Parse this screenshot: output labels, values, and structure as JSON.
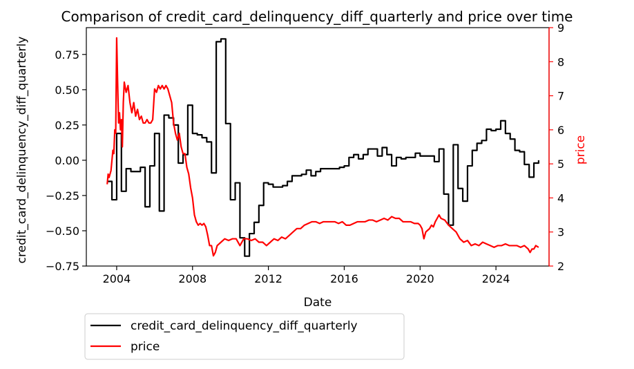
{
  "chart_data": {
    "type": "line",
    "title": "Comparison of credit_card_delinquency_diff_quarterly and price over time",
    "xlabel": "Date",
    "ylabel_left": "credit_card_delinquency_diff_quarterly",
    "ylabel_right": "price",
    "xlim": [
      2002.4,
      2026.8
    ],
    "ylim_left": [
      -0.75,
      0.94
    ],
    "ylim_right": [
      2.0,
      9.0
    ],
    "x_ticks": [
      2004,
      2008,
      2012,
      2016,
      2020,
      2024
    ],
    "x_tick_labels": [
      "2004",
      "2008",
      "2012",
      "2016",
      "2020",
      "2024"
    ],
    "y_left_ticks": [
      -0.75,
      -0.5,
      -0.25,
      0.0,
      0.25,
      0.5,
      0.75
    ],
    "y_left_tick_labels": [
      "−0.75",
      "−0.50",
      "−0.25",
      "0.00",
      "0.25",
      "0.50",
      "0.75"
    ],
    "y_right_ticks": [
      2,
      3,
      4,
      5,
      6,
      7,
      8,
      9
    ],
    "y_right_tick_labels": [
      "2",
      "3",
      "4",
      "5",
      "6",
      "7",
      "8",
      "9"
    ],
    "grid": false,
    "legend_placement": "below-left",
    "series": [
      {
        "name": "credit_card_delinquency_diff_quarterly",
        "axis": "left",
        "color": "#000000",
        "step": true,
        "points": [
          [
            2003.5,
            -0.15
          ],
          [
            2003.75,
            -0.28
          ],
          [
            2004.0,
            0.19
          ],
          [
            2004.25,
            -0.22
          ],
          [
            2004.5,
            -0.06
          ],
          [
            2004.75,
            -0.08
          ],
          [
            2005.0,
            -0.08
          ],
          [
            2005.25,
            -0.05
          ],
          [
            2005.5,
            -0.33
          ],
          [
            2005.75,
            -0.04
          ],
          [
            2006.0,
            0.19
          ],
          [
            2006.25,
            -0.36
          ],
          [
            2006.5,
            0.32
          ],
          [
            2006.75,
            0.3
          ],
          [
            2007.0,
            0.25
          ],
          [
            2007.25,
            -0.02
          ],
          [
            2007.5,
            0.04
          ],
          [
            2007.75,
            0.39
          ],
          [
            2008.0,
            0.19
          ],
          [
            2008.25,
            0.18
          ],
          [
            2008.5,
            0.16
          ],
          [
            2008.75,
            0.13
          ],
          [
            2009.0,
            -0.09
          ],
          [
            2009.25,
            0.84
          ],
          [
            2009.5,
            0.86
          ],
          [
            2009.75,
            0.26
          ],
          [
            2010.0,
            -0.28
          ],
          [
            2010.25,
            -0.16
          ],
          [
            2010.5,
            -0.55
          ],
          [
            2010.75,
            -0.68
          ],
          [
            2011.0,
            -0.52
          ],
          [
            2011.25,
            -0.44
          ],
          [
            2011.5,
            -0.32
          ],
          [
            2011.75,
            -0.16
          ],
          [
            2012.0,
            -0.17
          ],
          [
            2012.25,
            -0.19
          ],
          [
            2012.5,
            -0.19
          ],
          [
            2012.75,
            -0.18
          ],
          [
            2013.0,
            -0.15
          ],
          [
            2013.25,
            -0.11
          ],
          [
            2013.5,
            -0.11
          ],
          [
            2013.75,
            -0.1
          ],
          [
            2014.0,
            -0.07
          ],
          [
            2014.25,
            -0.11
          ],
          [
            2014.5,
            -0.08
          ],
          [
            2014.75,
            -0.06
          ],
          [
            2015.0,
            -0.06
          ],
          [
            2015.25,
            -0.06
          ],
          [
            2015.5,
            -0.06
          ],
          [
            2015.75,
            -0.05
          ],
          [
            2016.0,
            -0.04
          ],
          [
            2016.25,
            0.02
          ],
          [
            2016.5,
            0.04
          ],
          [
            2016.75,
            0.01
          ],
          [
            2017.0,
            0.04
          ],
          [
            2017.25,
            0.08
          ],
          [
            2017.5,
            0.08
          ],
          [
            2017.75,
            0.03
          ],
          [
            2018.0,
            0.09
          ],
          [
            2018.25,
            0.04
          ],
          [
            2018.5,
            -0.04
          ],
          [
            2018.75,
            0.02
          ],
          [
            2019.0,
            0.01
          ],
          [
            2019.25,
            0.02
          ],
          [
            2019.5,
            0.02
          ],
          [
            2019.75,
            0.05
          ],
          [
            2020.0,
            0.03
          ],
          [
            2020.25,
            0.03
          ],
          [
            2020.5,
            0.03
          ],
          [
            2020.75,
            -0.01
          ],
          [
            2021.0,
            0.08
          ],
          [
            2021.25,
            -0.24
          ],
          [
            2021.5,
            -0.46
          ],
          [
            2021.75,
            0.11
          ],
          [
            2022.0,
            -0.2
          ],
          [
            2022.25,
            -0.29
          ],
          [
            2022.5,
            -0.04
          ],
          [
            2022.75,
            0.07
          ],
          [
            2023.0,
            0.12
          ],
          [
            2023.25,
            0.14
          ],
          [
            2023.5,
            0.22
          ],
          [
            2023.75,
            0.21
          ],
          [
            2024.0,
            0.22
          ],
          [
            2024.25,
            0.28
          ],
          [
            2024.5,
            0.19
          ],
          [
            2024.75,
            0.15
          ],
          [
            2025.0,
            0.07
          ],
          [
            2025.25,
            0.06
          ],
          [
            2025.5,
            -0.03
          ],
          [
            2025.75,
            -0.12
          ],
          [
            2026.0,
            -0.02
          ],
          [
            2026.25,
            0.0
          ]
        ]
      },
      {
        "name": "price",
        "axis": "right",
        "color": "#ff0000",
        "step": false,
        "points": [
          [
            2003.5,
            4.4
          ],
          [
            2003.55,
            4.7
          ],
          [
            2003.6,
            4.6
          ],
          [
            2003.7,
            4.8
          ],
          [
            2003.8,
            5.4
          ],
          [
            2003.85,
            5.3
          ],
          [
            2003.9,
            6.0
          ],
          [
            2003.95,
            5.9
          ],
          [
            2004.0,
            8.7
          ],
          [
            2004.05,
            7.4
          ],
          [
            2004.1,
            6.2
          ],
          [
            2004.15,
            6.5
          ],
          [
            2004.2,
            6.0
          ],
          [
            2004.25,
            6.3
          ],
          [
            2004.3,
            5.5
          ],
          [
            2004.35,
            6.8
          ],
          [
            2004.4,
            7.4
          ],
          [
            2004.5,
            7.1
          ],
          [
            2004.6,
            7.3
          ],
          [
            2004.7,
            6.8
          ],
          [
            2004.8,
            6.5
          ],
          [
            2004.9,
            6.8
          ],
          [
            2005.0,
            6.4
          ],
          [
            2005.1,
            6.6
          ],
          [
            2005.2,
            6.3
          ],
          [
            2005.3,
            6.4
          ],
          [
            2005.4,
            6.2
          ],
          [
            2005.5,
            6.2
          ],
          [
            2005.6,
            6.3
          ],
          [
            2005.7,
            6.2
          ],
          [
            2005.8,
            6.2
          ],
          [
            2005.9,
            6.3
          ],
          [
            2006.0,
            7.2
          ],
          [
            2006.1,
            7.1
          ],
          [
            2006.2,
            7.3
          ],
          [
            2006.3,
            7.2
          ],
          [
            2006.4,
            7.3
          ],
          [
            2006.5,
            7.2
          ],
          [
            2006.6,
            7.3
          ],
          [
            2006.7,
            7.2
          ],
          [
            2006.8,
            7.0
          ],
          [
            2006.9,
            6.8
          ],
          [
            2007.0,
            6.2
          ],
          [
            2007.1,
            5.9
          ],
          [
            2007.2,
            5.7
          ],
          [
            2007.3,
            5.9
          ],
          [
            2007.4,
            5.5
          ],
          [
            2007.5,
            5.3
          ],
          [
            2007.6,
            5.3
          ],
          [
            2007.7,
            4.9
          ],
          [
            2007.8,
            4.7
          ],
          [
            2007.9,
            4.3
          ],
          [
            2008.0,
            4.0
          ],
          [
            2008.1,
            3.5
          ],
          [
            2008.2,
            3.3
          ],
          [
            2008.3,
            3.2
          ],
          [
            2008.4,
            3.25
          ],
          [
            2008.5,
            3.2
          ],
          [
            2008.6,
            3.25
          ],
          [
            2008.7,
            3.15
          ],
          [
            2008.8,
            2.9
          ],
          [
            2008.9,
            2.6
          ],
          [
            2009.0,
            2.6
          ],
          [
            2009.1,
            2.3
          ],
          [
            2009.2,
            2.4
          ],
          [
            2009.3,
            2.6
          ],
          [
            2009.5,
            2.7
          ],
          [
            2009.7,
            2.8
          ],
          [
            2009.9,
            2.75
          ],
          [
            2010.1,
            2.8
          ],
          [
            2010.3,
            2.8
          ],
          [
            2010.5,
            2.6
          ],
          [
            2010.7,
            2.8
          ],
          [
            2010.9,
            2.8
          ],
          [
            2011.1,
            2.75
          ],
          [
            2011.3,
            2.8
          ],
          [
            2011.5,
            2.7
          ],
          [
            2011.7,
            2.7
          ],
          [
            2011.9,
            2.6
          ],
          [
            2012.1,
            2.7
          ],
          [
            2012.3,
            2.8
          ],
          [
            2012.5,
            2.75
          ],
          [
            2012.7,
            2.85
          ],
          [
            2012.9,
            2.8
          ],
          [
            2013.1,
            2.9
          ],
          [
            2013.3,
            3.0
          ],
          [
            2013.5,
            3.1
          ],
          [
            2013.7,
            3.1
          ],
          [
            2013.9,
            3.2
          ],
          [
            2014.1,
            3.25
          ],
          [
            2014.3,
            3.3
          ],
          [
            2014.5,
            3.3
          ],
          [
            2014.7,
            3.25
          ],
          [
            2014.9,
            3.3
          ],
          [
            2015.1,
            3.3
          ],
          [
            2015.3,
            3.3
          ],
          [
            2015.5,
            3.3
          ],
          [
            2015.7,
            3.25
          ],
          [
            2015.9,
            3.3
          ],
          [
            2016.1,
            3.2
          ],
          [
            2016.3,
            3.2
          ],
          [
            2016.5,
            3.25
          ],
          [
            2016.7,
            3.3
          ],
          [
            2016.9,
            3.3
          ],
          [
            2017.1,
            3.3
          ],
          [
            2017.3,
            3.35
          ],
          [
            2017.5,
            3.35
          ],
          [
            2017.7,
            3.3
          ],
          [
            2017.9,
            3.35
          ],
          [
            2018.1,
            3.4
          ],
          [
            2018.3,
            3.35
          ],
          [
            2018.5,
            3.45
          ],
          [
            2018.7,
            3.4
          ],
          [
            2018.9,
            3.4
          ],
          [
            2019.1,
            3.3
          ],
          [
            2019.3,
            3.3
          ],
          [
            2019.5,
            3.3
          ],
          [
            2019.7,
            3.25
          ],
          [
            2019.9,
            3.25
          ],
          [
            2020.0,
            3.2
          ],
          [
            2020.1,
            3.1
          ],
          [
            2020.2,
            2.8
          ],
          [
            2020.3,
            3.0
          ],
          [
            2020.4,
            3.05
          ],
          [
            2020.5,
            3.1
          ],
          [
            2020.6,
            3.2
          ],
          [
            2020.7,
            3.15
          ],
          [
            2020.8,
            3.3
          ],
          [
            2020.9,
            3.4
          ],
          [
            2021.0,
            3.5
          ],
          [
            2021.1,
            3.4
          ],
          [
            2021.3,
            3.35
          ],
          [
            2021.5,
            3.2
          ],
          [
            2021.7,
            3.1
          ],
          [
            2021.9,
            3.0
          ],
          [
            2022.1,
            2.8
          ],
          [
            2022.3,
            2.7
          ],
          [
            2022.5,
            2.75
          ],
          [
            2022.7,
            2.6
          ],
          [
            2022.9,
            2.65
          ],
          [
            2023.1,
            2.6
          ],
          [
            2023.3,
            2.7
          ],
          [
            2023.5,
            2.65
          ],
          [
            2023.7,
            2.6
          ],
          [
            2023.9,
            2.55
          ],
          [
            2024.1,
            2.6
          ],
          [
            2024.3,
            2.6
          ],
          [
            2024.5,
            2.65
          ],
          [
            2024.7,
            2.6
          ],
          [
            2024.9,
            2.6
          ],
          [
            2025.1,
            2.6
          ],
          [
            2025.3,
            2.55
          ],
          [
            2025.5,
            2.6
          ],
          [
            2025.7,
            2.5
          ],
          [
            2025.8,
            2.4
          ],
          [
            2025.9,
            2.5
          ],
          [
            2026.0,
            2.5
          ],
          [
            2026.1,
            2.6
          ],
          [
            2026.25,
            2.55
          ]
        ]
      }
    ]
  }
}
